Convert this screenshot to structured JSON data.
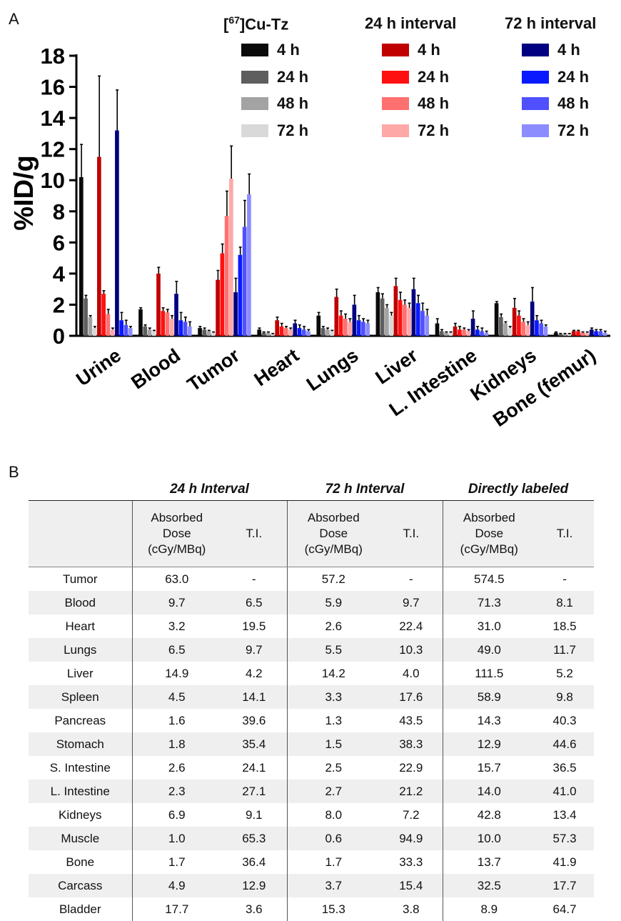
{
  "panel_a_letter": "A",
  "panel_b_letter": "B",
  "legend": {
    "groups": [
      {
        "title": "Cu-Tz",
        "title_sup": "67",
        "title_prefix": "[",
        "title_mid": "]",
        "items": [
          {
            "label": "4 h",
            "color": "#0a0a0a"
          },
          {
            "label": "24 h",
            "color": "#5e5e5e"
          },
          {
            "label": "48 h",
            "color": "#a3a3a3"
          },
          {
            "label": "72 h",
            "color": "#d9d9d9"
          }
        ]
      },
      {
        "title": "24 h interval",
        "items": [
          {
            "label": "4 h",
            "color": "#c00000"
          },
          {
            "label": "24 h",
            "color": "#ff1010"
          },
          {
            "label": "48 h",
            "color": "#ff7070"
          },
          {
            "label": "72 h",
            "color": "#ffa8a8"
          }
        ]
      },
      {
        "title": "72 h interval",
        "items": [
          {
            "label": "4 h",
            "color": "#000080"
          },
          {
            "label": "24 h",
            "color": "#0a1aff"
          },
          {
            "label": "48 h",
            "color": "#5050ff"
          },
          {
            "label": "72 h",
            "color": "#8c8cff"
          }
        ]
      }
    ]
  },
  "chart_data": {
    "type": "bar",
    "ylabel": "%ID/g",
    "ylim": [
      0,
      18
    ],
    "yticks": [
      "0",
      "2",
      "4",
      "6",
      "8",
      "10",
      "12",
      "14",
      "16",
      "18"
    ],
    "categories": [
      "Urine",
      "Blood",
      "Tumor",
      "Heart",
      "Lungs",
      "Liver",
      "L. Intestine",
      "Kidneys",
      "Bone (femur)"
    ],
    "series": [
      {
        "name": "4 h",
        "group": "Cu-Tz",
        "color": "#0a0a0a",
        "values": [
          10.2,
          1.7,
          0.5,
          0.4,
          1.3,
          2.8,
          0.8,
          2.1,
          0.2
        ]
      },
      {
        "name": "24 h",
        "group": "Cu-Tz",
        "color": "#5e5e5e",
        "values": [
          2.4,
          0.6,
          0.4,
          0.2,
          0.5,
          2.4,
          0.3,
          1.2,
          0.1
        ]
      },
      {
        "name": "48 h",
        "group": "Cu-Tz",
        "color": "#a3a3a3",
        "values": [
          1.2,
          0.4,
          0.3,
          0.2,
          0.4,
          1.8,
          0.2,
          0.8,
          0.1
        ]
      },
      {
        "name": "72 h",
        "group": "Cu-Tz",
        "color": "#d9d9d9",
        "values": [
          0.5,
          0.3,
          0.2,
          0.1,
          0.3,
          1.3,
          0.2,
          0.5,
          0.1
        ]
      },
      {
        "name": "4 h",
        "group": "24 h interval",
        "color": "#c00000",
        "values": [
          11.5,
          4.0,
          3.6,
          1.0,
          2.5,
          3.2,
          0.6,
          1.8,
          0.3
        ]
      },
      {
        "name": "24 h",
        "group": "24 h interval",
        "color": "#ff1010",
        "values": [
          2.7,
          1.6,
          5.3,
          0.6,
          1.3,
          2.3,
          0.4,
          1.3,
          0.3
        ]
      },
      {
        "name": "48 h",
        "group": "24 h interval",
        "color": "#ff7070",
        "values": [
          1.4,
          1.5,
          7.7,
          0.5,
          1.1,
          2.0,
          0.4,
          0.9,
          0.2
        ]
      },
      {
        "name": "72 h",
        "group": "24 h interval",
        "color": "#ffa8a8",
        "values": [
          0.4,
          1.1,
          10.1,
          0.4,
          0.9,
          1.8,
          0.3,
          0.7,
          0.2
        ]
      },
      {
        "name": "4 h",
        "group": "72 h interval",
        "color": "#000080",
        "values": [
          13.2,
          2.7,
          2.8,
          0.8,
          2.0,
          3.0,
          1.1,
          2.2,
          0.4
        ]
      },
      {
        "name": "24 h",
        "group": "72 h interval",
        "color": "#0a1aff",
        "values": [
          1.0,
          1.0,
          5.2,
          0.5,
          1.0,
          2.1,
          0.4,
          1.0,
          0.3
        ]
      },
      {
        "name": "48 h",
        "group": "72 h interval",
        "color": "#5050ff",
        "values": [
          0.7,
          0.9,
          7.0,
          0.4,
          0.9,
          1.6,
          0.3,
          0.8,
          0.3
        ]
      },
      {
        "name": "72 h",
        "group": "72 h interval",
        "color": "#8c8cff",
        "values": [
          0.5,
          0.6,
          9.1,
          0.3,
          0.8,
          1.3,
          0.2,
          0.6,
          0.2
        ]
      }
    ],
    "error": [
      [
        2.1,
        0.1,
        0.1,
        0.1,
        0.2,
        0.3,
        0.3,
        0.1,
        0.05
      ],
      [
        0.2,
        0.1,
        0.1,
        0.05,
        0.1,
        0.3,
        0.1,
        0.2,
        0.05
      ],
      [
        0.1,
        0.1,
        0.05,
        0.05,
        0.1,
        0.2,
        0.05,
        0.1,
        0.05
      ],
      [
        0.1,
        0.05,
        0.05,
        0.05,
        0.05,
        0.2,
        0.05,
        0.1,
        0.05
      ],
      [
        5.2,
        0.4,
        0.6,
        0.2,
        0.5,
        0.5,
        0.2,
        0.6,
        0.05
      ],
      [
        0.2,
        0.2,
        0.6,
        0.2,
        0.3,
        0.5,
        0.2,
        0.3,
        0.05
      ],
      [
        0.3,
        0.2,
        1.6,
        0.1,
        0.3,
        0.3,
        0.1,
        0.2,
        0.05
      ],
      [
        0.1,
        0.2,
        2.1,
        0.1,
        0.2,
        0.3,
        0.1,
        0.2,
        0.05
      ],
      [
        2.6,
        0.8,
        0.9,
        0.2,
        0.6,
        0.7,
        0.5,
        0.9,
        0.1
      ],
      [
        0.5,
        0.5,
        0.5,
        0.2,
        0.3,
        0.5,
        0.2,
        0.3,
        0.1
      ],
      [
        0.3,
        0.3,
        1.7,
        0.2,
        0.2,
        0.5,
        0.2,
        0.2,
        0.1
      ],
      [
        0.1,
        0.3,
        1.3,
        0.1,
        0.2,
        0.4,
        0.1,
        0.1,
        0.1
      ]
    ]
  },
  "table": {
    "group_headers": [
      "24 h Interval",
      "72 h Interval",
      "Directly labeled"
    ],
    "sub_headers": {
      "dose": [
        "Absorbed",
        "Dose",
        "(cGy/MBq)"
      ],
      "ti": "T.I."
    },
    "rows": [
      {
        "organ": "Tumor",
        "c24_dose": "63.0",
        "c24_ti": "-",
        "c72_dose": "57.2",
        "c72_ti": "-",
        "dl_dose": "574.5",
        "dl_ti": "-"
      },
      {
        "organ": "Blood",
        "c24_dose": "9.7",
        "c24_ti": "6.5",
        "c72_dose": "5.9",
        "c72_ti": "9.7",
        "dl_dose": "71.3",
        "dl_ti": "8.1"
      },
      {
        "organ": "Heart",
        "c24_dose": "3.2",
        "c24_ti": "19.5",
        "c72_dose": "2.6",
        "c72_ti": "22.4",
        "dl_dose": "31.0",
        "dl_ti": "18.5"
      },
      {
        "organ": "Lungs",
        "c24_dose": "6.5",
        "c24_ti": "9.7",
        "c72_dose": "5.5",
        "c72_ti": "10.3",
        "dl_dose": "49.0",
        "dl_ti": "11.7"
      },
      {
        "organ": "Liver",
        "c24_dose": "14.9",
        "c24_ti": "4.2",
        "c72_dose": "14.2",
        "c72_ti": "4.0",
        "dl_dose": "111.5",
        "dl_ti": "5.2"
      },
      {
        "organ": "Spleen",
        "c24_dose": "4.5",
        "c24_ti": "14.1",
        "c72_dose": "3.3",
        "c72_ti": "17.6",
        "dl_dose": "58.9",
        "dl_ti": "9.8"
      },
      {
        "organ": "Pancreas",
        "c24_dose": "1.6",
        "c24_ti": "39.6",
        "c72_dose": "1.3",
        "c72_ti": "43.5",
        "dl_dose": "14.3",
        "dl_ti": "40.3"
      },
      {
        "organ": "Stomach",
        "c24_dose": "1.8",
        "c24_ti": "35.4",
        "c72_dose": "1.5",
        "c72_ti": "38.3",
        "dl_dose": "12.9",
        "dl_ti": "44.6"
      },
      {
        "organ": "S. Intestine",
        "c24_dose": "2.6",
        "c24_ti": "24.1",
        "c72_dose": "2.5",
        "c72_ti": "22.9",
        "dl_dose": "15.7",
        "dl_ti": "36.5"
      },
      {
        "organ": "L. Intestine",
        "c24_dose": "2.3",
        "c24_ti": "27.1",
        "c72_dose": "2.7",
        "c72_ti": "21.2",
        "dl_dose": "14.0",
        "dl_ti": "41.0"
      },
      {
        "organ": "Kidneys",
        "c24_dose": "6.9",
        "c24_ti": "9.1",
        "c72_dose": "8.0",
        "c72_ti": "7.2",
        "dl_dose": "42.8",
        "dl_ti": "13.4"
      },
      {
        "organ": "Muscle",
        "c24_dose": "1.0",
        "c24_ti": "65.3",
        "c72_dose": "0.6",
        "c72_ti": "94.9",
        "dl_dose": "10.0",
        "dl_ti": "57.3"
      },
      {
        "organ": "Bone",
        "c24_dose": "1.7",
        "c24_ti": "36.4",
        "c72_dose": "1.7",
        "c72_ti": "33.3",
        "dl_dose": "13.7",
        "dl_ti": "41.9"
      },
      {
        "organ": "Carcass",
        "c24_dose": "4.9",
        "c24_ti": "12.9",
        "c72_dose": "3.7",
        "c72_ti": "15.4",
        "dl_dose": "32.5",
        "dl_ti": "17.7"
      },
      {
        "organ": "Bladder",
        "c24_dose": "17.7",
        "c24_ti": "3.6",
        "c72_dose": "15.3",
        "c72_ti": "3.8",
        "dl_dose": "8.9",
        "dl_ti": "64.7"
      }
    ]
  }
}
